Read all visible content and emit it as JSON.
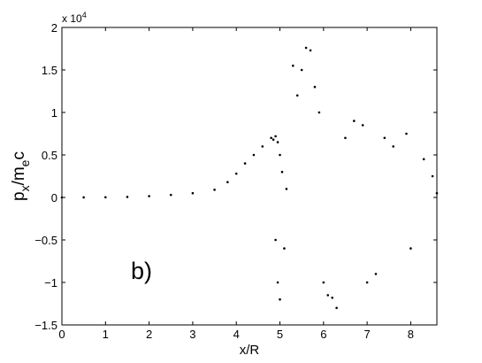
{
  "chart_data": {
    "type": "scatter",
    "title": "",
    "panel_label": "b)",
    "xlabel": "x/R",
    "ylabel_main": "p",
    "ylabel_sub_x": "x",
    "ylabel_mid": "/m",
    "ylabel_sub_e": "e",
    "ylabel_end": "c",
    "exponent_label": "x 10",
    "exponent_power": "4",
    "xlim": [
      0,
      8.6
    ],
    "ylim": [
      -15000,
      20000
    ],
    "x_ticks": [
      0,
      1,
      2,
      3,
      4,
      5,
      6,
      7,
      8
    ],
    "x_tick_labels": [
      "0",
      "1",
      "2",
      "3",
      "4",
      "5",
      "6",
      "7",
      "8"
    ],
    "y_ticks": [
      -15000,
      -10000,
      -5000,
      0,
      5000,
      10000,
      15000,
      20000
    ],
    "y_tick_labels": [
      "−1.5",
      "−1",
      "−0.5",
      "0",
      "0.5",
      "1",
      "1.5",
      "2"
    ],
    "grid": false,
    "marker_color": "#000000",
    "series": [
      {
        "points": [
          [
            0.0,
            0
          ],
          [
            0.5,
            10
          ],
          [
            1.0,
            20
          ],
          [
            1.5,
            60
          ],
          [
            2.0,
            150
          ],
          [
            2.5,
            300
          ],
          [
            3.0,
            500
          ],
          [
            3.5,
            900
          ],
          [
            3.8,
            1800
          ],
          [
            4.0,
            2800
          ],
          [
            4.2,
            4000
          ],
          [
            4.4,
            5000
          ],
          [
            4.6,
            6000
          ],
          [
            4.8,
            7000
          ],
          [
            4.9,
            7200
          ],
          [
            4.95,
            6500
          ],
          [
            4.85,
            6800
          ],
          [
            4.9,
            -5000
          ],
          [
            4.95,
            -10000
          ],
          [
            5.0,
            -12000
          ],
          [
            5.0,
            5000
          ],
          [
            5.05,
            3000
          ],
          [
            5.1,
            -6000
          ],
          [
            5.15,
            1000
          ],
          [
            5.3,
            15500
          ],
          [
            5.4,
            12000
          ],
          [
            5.5,
            15000
          ],
          [
            5.6,
            17600
          ],
          [
            5.7,
            17300
          ],
          [
            5.8,
            13000
          ],
          [
            5.9,
            10000
          ],
          [
            6.0,
            -10000
          ],
          [
            6.1,
            -11500
          ],
          [
            6.2,
            -11800
          ],
          [
            6.3,
            -13000
          ],
          [
            6.5,
            7000
          ],
          [
            6.7,
            9000
          ],
          [
            6.9,
            8500
          ],
          [
            7.0,
            -10000
          ],
          [
            7.2,
            -9000
          ],
          [
            7.4,
            7000
          ],
          [
            7.6,
            6000
          ],
          [
            7.9,
            7500
          ],
          [
            8.0,
            -6000
          ],
          [
            8.3,
            4500
          ],
          [
            8.5,
            2500
          ],
          [
            8.6,
            500
          ]
        ]
      }
    ]
  }
}
